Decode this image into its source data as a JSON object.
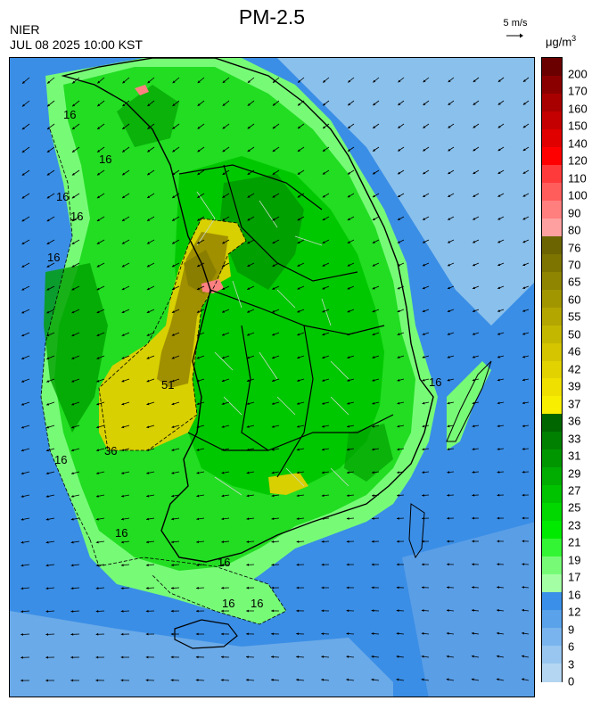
{
  "header": {
    "title": "PM-2.5",
    "agency": "NIER",
    "datetime": "JUL 08 2025 10:00 KST",
    "wind_reference": "5 m/s",
    "unit_base": "μg/m",
    "unit_exp": "3"
  },
  "colorbar": {
    "ticks": [
      "200",
      "170",
      "160",
      "150",
      "140",
      "120",
      "110",
      "100",
      "90",
      "80",
      "76",
      "70",
      "65",
      "60",
      "55",
      "50",
      "46",
      "42",
      "39",
      "37",
      "36",
      "33",
      "31",
      "29",
      "27",
      "25",
      "23",
      "21",
      "19",
      "17",
      "16",
      "12",
      "9",
      "6",
      "3",
      "0"
    ],
    "colors": [
      "#6b0000",
      "#8a0000",
      "#a80000",
      "#c40000",
      "#e00000",
      "#ff0000",
      "#ff3a3a",
      "#ff5c5c",
      "#ff7e7e",
      "#ffa0a0",
      "#6b6400",
      "#7d7400",
      "#8f8500",
      "#a19600",
      "#b3a600",
      "#c4b700",
      "#d4c500",
      "#e2d200",
      "#efe000",
      "#f7ee00",
      "#006600",
      "#008000",
      "#009600",
      "#00ad00",
      "#00c300",
      "#00d800",
      "#00ea00",
      "#33f533",
      "#77fb77",
      "#a4ffa4",
      "#3a90e8",
      "#5aa2ea",
      "#7ab4ee",
      "#98c6f0",
      "#b4d6f2"
    ]
  },
  "map": {
    "contour_labels": [
      "16",
      "16",
      "16",
      "16",
      "16",
      "16",
      "16",
      "16",
      "16",
      "16",
      "16",
      "51",
      "36"
    ],
    "colors": {
      "sea": "#3a8ee6",
      "sea_light": "#8ac0ec",
      "low_green": "#77fb77",
      "mid_green": "#22dd22",
      "green": "#00c800",
      "dark_green": "#00a000",
      "yellow": "#d8d000",
      "olive": "#a09000",
      "dark_olive": "#8a7e00",
      "pink": "#ff8080",
      "boundary": "#000000"
    }
  }
}
